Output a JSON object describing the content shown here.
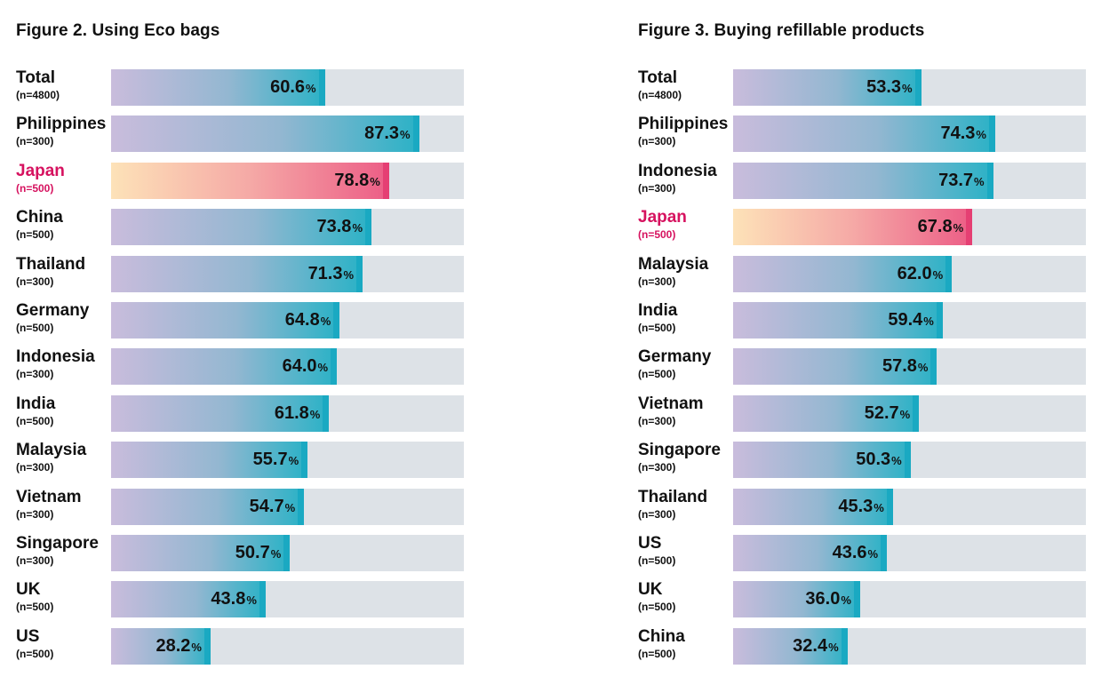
{
  "chart_data": [
    {
      "type": "bar",
      "orientation": "horizontal",
      "title": "Figure 2. Using Eco bags",
      "unit": "%",
      "xlim": [
        0,
        100
      ],
      "highlight": "Japan",
      "rows": [
        {
          "country": "Total",
          "n": "(n=4800)",
          "value": 60.6
        },
        {
          "country": "Philippines",
          "n": "(n=300)",
          "value": 87.3
        },
        {
          "country": "Japan",
          "n": "(n=500)",
          "value": 78.8
        },
        {
          "country": "China",
          "n": "(n=500)",
          "value": 73.8
        },
        {
          "country": "Thailand",
          "n": "(n=300)",
          "value": 71.3
        },
        {
          "country": "Germany",
          "n": "(n=500)",
          "value": 64.8
        },
        {
          "country": "Indonesia",
          "n": "(n=300)",
          "value": 64.0
        },
        {
          "country": "India",
          "n": "(n=500)",
          "value": 61.8
        },
        {
          "country": "Malaysia",
          "n": "(n=300)",
          "value": 55.7
        },
        {
          "country": "Vietnam",
          "n": "(n=300)",
          "value": 54.7
        },
        {
          "country": "Singapore",
          "n": "(n=300)",
          "value": 50.7
        },
        {
          "country": "UK",
          "n": "(n=500)",
          "value": 43.8
        },
        {
          "country": "US",
          "n": "(n=500)",
          "value": 28.2
        }
      ]
    },
    {
      "type": "bar",
      "orientation": "horizontal",
      "title": "Figure 3. Buying refillable products",
      "unit": "%",
      "xlim": [
        0,
        100
      ],
      "highlight": "Japan",
      "rows": [
        {
          "country": "Total",
          "n": "(n=4800)",
          "value": 53.3
        },
        {
          "country": "Philippines",
          "n": "(n=300)",
          "value": 74.3
        },
        {
          "country": "Indonesia",
          "n": "(n=300)",
          "value": 73.7
        },
        {
          "country": "Japan",
          "n": "(n=500)",
          "value": 67.8
        },
        {
          "country": "Malaysia",
          "n": "(n=300)",
          "value": 62.0
        },
        {
          "country": "India",
          "n": "(n=500)",
          "value": 59.4
        },
        {
          "country": "Germany",
          "n": "(n=500)",
          "value": 57.8
        },
        {
          "country": "Vietnam",
          "n": "(n=300)",
          "value": 52.7
        },
        {
          "country": "Singapore",
          "n": "(n=300)",
          "value": 50.3
        },
        {
          "country": "Thailand",
          "n": "(n=300)",
          "value": 45.3
        },
        {
          "country": "US",
          "n": "(n=500)",
          "value": 43.6
        },
        {
          "country": "UK",
          "n": "(n=500)",
          "value": 36.0
        },
        {
          "country": "China",
          "n": "(n=500)",
          "value": 32.4
        }
      ]
    }
  ],
  "colors": {
    "track": "#dde2e7",
    "bar_start": "#c9bcdc",
    "bar_end": "#2ab2c6",
    "highlight_start": "#fde2b8",
    "highlight_end": "#ec5d86",
    "highlight_text": "#d6125f"
  }
}
